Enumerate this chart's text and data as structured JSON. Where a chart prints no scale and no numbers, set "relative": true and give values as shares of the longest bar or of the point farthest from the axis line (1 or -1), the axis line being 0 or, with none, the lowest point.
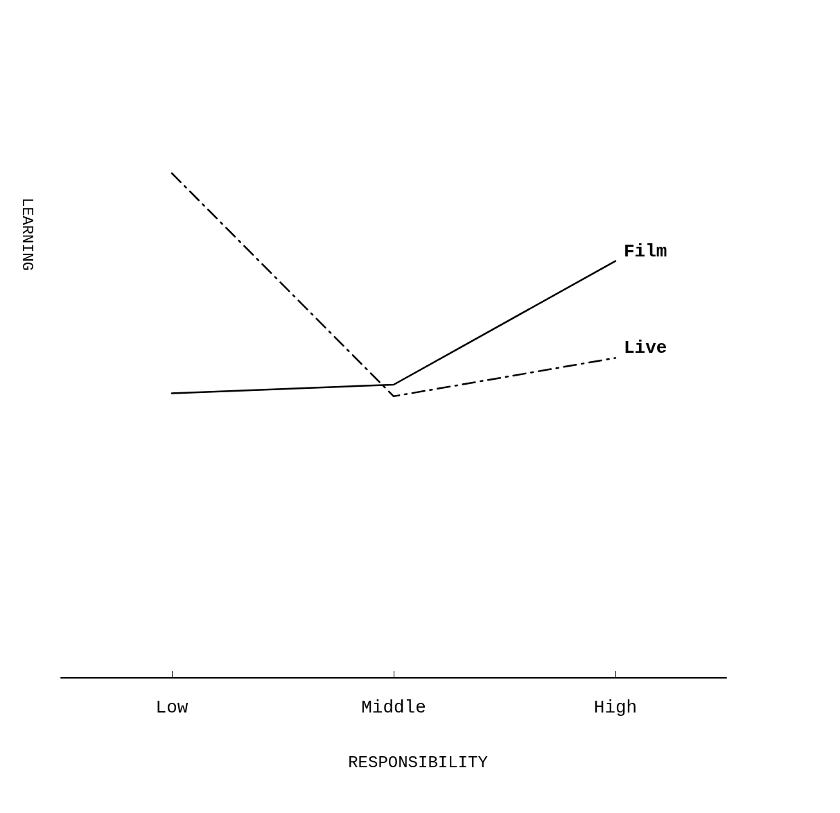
{
  "chart_data": {
    "type": "line",
    "relative": true,
    "xlabel": "RESPONSIBILITY",
    "ylabel": "LEARNING",
    "categories": [
      "Low",
      "Middle",
      "High"
    ],
    "marker": "none",
    "legend": false,
    "grid": false,
    "series": [
      {
        "name": "Film",
        "color": "#000000",
        "line_style": "solid",
        "values": [
          0.564,
          0.581,
          0.826
        ]
      },
      {
        "name": "Live",
        "color": "#000000",
        "line_style": "dashed",
        "values": [
          1,
          0.558,
          0.634
        ]
      }
    ]
  }
}
